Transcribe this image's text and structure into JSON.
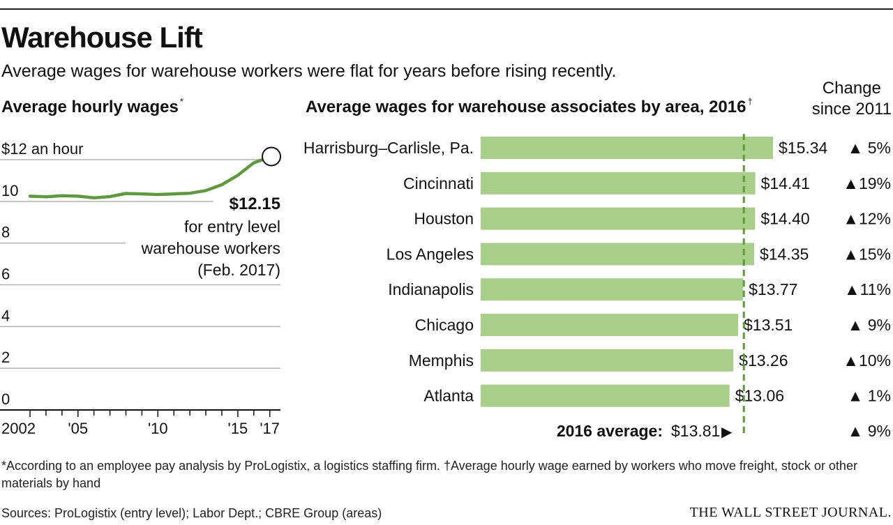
{
  "header": {
    "title": "Warehouse Lift",
    "subtitle": "Average wages for warehouse workers were flat for years before rising recently."
  },
  "left_chart_title": {
    "text": "Average hourly wages",
    "mark": "*"
  },
  "right_chart_title": {
    "text": "Average wages for warehouse associates by area, 2016",
    "mark": "†"
  },
  "change_header": {
    "line1": "Change",
    "line2": "since 2011"
  },
  "annotation": {
    "value": "$12.15",
    "line1": "for entry level",
    "line2": "warehouse workers",
    "line3": "(Feb. 2017)"
  },
  "average_label": {
    "label": "2016 average:",
    "value": "$13.81",
    "arrow": "▶",
    "change": "▲ 9%"
  },
  "colors": {
    "line": "#5c9a3a",
    "bar": "#a8cf87",
    "avg_line": "#5c9a3a",
    "grid": "#b3b3b3",
    "text": "#111111"
  },
  "chart_data": [
    {
      "type": "line",
      "title": "Average hourly wages*",
      "ylim": [
        0,
        12
      ],
      "y_ticks": [
        {
          "value": 12,
          "label": "$12 an hour"
        },
        {
          "value": 10,
          "label": "10"
        },
        {
          "value": 8,
          "label": "8"
        },
        {
          "value": 6,
          "label": "6"
        },
        {
          "value": 4,
          "label": "4"
        },
        {
          "value": 2,
          "label": "2"
        },
        {
          "value": 0,
          "label": "0"
        }
      ],
      "x_range": [
        2002,
        2017.1
      ],
      "x_ticks": [
        {
          "value": 2002,
          "label": "2002"
        },
        {
          "value": 2005,
          "label": "'05"
        },
        {
          "value": 2010,
          "label": "'10"
        },
        {
          "value": 2015,
          "label": "'15"
        },
        {
          "value": 2017,
          "label": "'17"
        }
      ],
      "x_minor_ticks": [
        2003,
        2004,
        2006,
        2007,
        2008,
        2009,
        2011,
        2012,
        2013,
        2014,
        2016
      ],
      "x": [
        2002,
        2003,
        2004,
        2005,
        2006,
        2007,
        2008,
        2009,
        2010,
        2011,
        2012,
        2013,
        2014,
        2015,
        2016,
        2017.1
      ],
      "y": [
        10.25,
        10.22,
        10.27,
        10.25,
        10.17,
        10.23,
        10.38,
        10.36,
        10.33,
        10.36,
        10.39,
        10.52,
        10.8,
        11.25,
        11.85,
        12.15
      ],
      "highlight": {
        "x": 2017.1,
        "y": 12.15,
        "label": "$12.15"
      }
    },
    {
      "type": "bar",
      "title": "Average wages for warehouse associates by area, 2016†",
      "categories": [
        "Harrisburg–Carlisle, Pa.",
        "Cincinnati",
        "Houston",
        "Los Angeles",
        "Indianapolis",
        "Chicago",
        "Memphis",
        "Atlanta"
      ],
      "values": [
        15.34,
        14.41,
        14.4,
        14.35,
        13.77,
        13.51,
        13.26,
        13.06
      ],
      "value_labels": [
        "$15.34",
        "$14.41",
        "$14.40",
        "$14.35",
        "$13.77",
        "$13.51",
        "$13.26",
        "$13.06"
      ],
      "change_since_2011": [
        "▲ 5%",
        "▲19%",
        "▲12%",
        "▲15%",
        "▲11%",
        "▲ 9%",
        "▲10%",
        "▲ 1%"
      ],
      "reference_line": {
        "value": 13.81,
        "label": "2016 average:"
      },
      "xlim": [
        0,
        15.34
      ]
    }
  ],
  "footnote": "*According to an employee pay analysis by ProLogistix, a logistics staffing firm. †Average hourly wage earned by workers who move freight, stock or other materials by hand",
  "sources": "Sources: ProLogistix (entry level); Labor Dept.; CBRE Group (areas)",
  "brand": "THE WALL STREET JOURNAL."
}
